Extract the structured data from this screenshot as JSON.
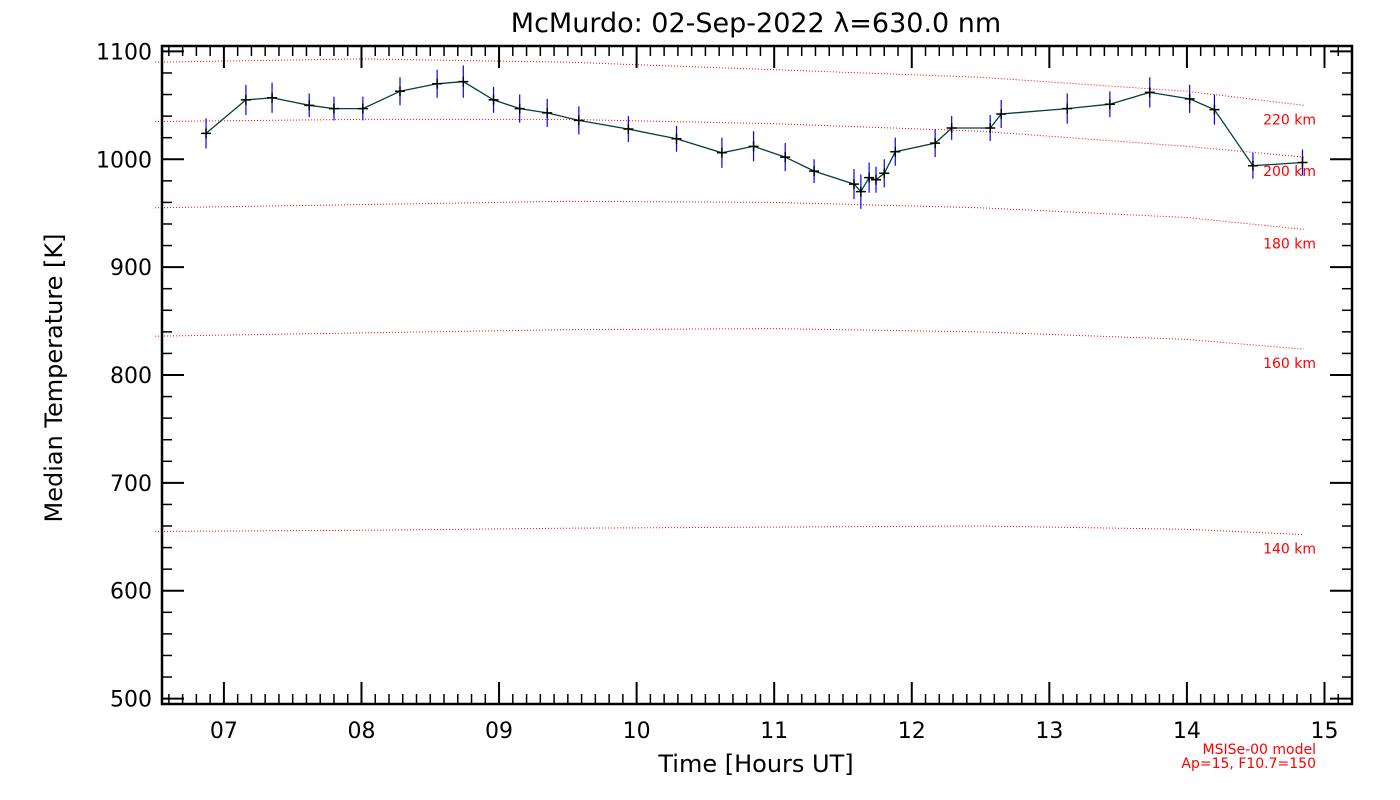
{
  "chart_data": {
    "type": "line",
    "title": "McMurdo: 02-Sep-2022 λ=630.0 nm",
    "xlabel": "Time [Hours UT]",
    "ylabel": "Median Temperature [K]",
    "xlim": [
      6.55,
      15.2
    ],
    "ylim": [
      495,
      1105
    ],
    "x_ticks": [
      7,
      8,
      9,
      10,
      11,
      12,
      13,
      14,
      15
    ],
    "x_tick_labels": [
      "07",
      "08",
      "09",
      "10",
      "11",
      "12",
      "13",
      "14",
      "15"
    ],
    "y_ticks": [
      500,
      600,
      700,
      800,
      900,
      1000,
      1100
    ],
    "y_tick_labels": [
      "500",
      "600",
      "700",
      "800",
      "900",
      "1000",
      "1100"
    ],
    "grid": false,
    "series": [
      {
        "color": "#000000",
        "errorbar_color": "#0000ff",
        "line_color": "#004040",
        "x": [
          6.87,
          7.16,
          7.35,
          7.62,
          7.8,
          8.01,
          8.28,
          8.55,
          8.74,
          8.96,
          9.15,
          9.35,
          9.58,
          9.94,
          10.29,
          10.62,
          10.85,
          11.08,
          11.29,
          11.58,
          11.63,
          11.69,
          11.74,
          11.8,
          11.88,
          12.17,
          12.29,
          12.57,
          12.65,
          13.13,
          13.44,
          13.73,
          14.02,
          14.2,
          14.48,
          14.84
        ],
        "y": [
          1024,
          1055,
          1057,
          1050,
          1047,
          1047,
          1063,
          1070,
          1072,
          1055,
          1047,
          1043,
          1036,
          1028,
          1019,
          1006,
          1012,
          1002,
          989,
          977,
          970,
          983,
          981,
          987,
          1007,
          1015,
          1029,
          1029,
          1042,
          1047,
          1051,
          1062,
          1056,
          1046,
          994,
          997
        ],
        "yerr": [
          14,
          14,
          14,
          11,
          11,
          11,
          13,
          13,
          15,
          12,
          13,
          13,
          13,
          12,
          12,
          14,
          14,
          13,
          11,
          14,
          16,
          14,
          12,
          13,
          13,
          13,
          11,
          12,
          13,
          14,
          12,
          14,
          13,
          14,
          12,
          12
        ]
      }
    ],
    "model_curves": {
      "color": "#ff0000",
      "x": [
        6.5,
        8.0,
        9.5,
        11.0,
        12.5,
        14.0,
        14.85
      ],
      "curves": [
        {
          "label": "220 km",
          "y": [
            1090,
            1093,
            1090,
            1083,
            1076,
            1063,
            1050
          ]
        },
        {
          "label": "200 km",
          "y": [
            1035,
            1037,
            1037,
            1033,
            1026,
            1012,
            1002
          ]
        },
        {
          "label": "180 km",
          "y": [
            955,
            958,
            961,
            960,
            955,
            946,
            935
          ]
        },
        {
          "label": "160 km",
          "y": [
            836,
            839,
            842,
            843,
            840,
            833,
            824
          ]
        },
        {
          "label": "140 km",
          "y": [
            655,
            656,
            658,
            659,
            660,
            657,
            652
          ]
        }
      ]
    },
    "annotations": [
      "MSISe-00 model",
      "Ap=15, F10.7=150"
    ]
  }
}
